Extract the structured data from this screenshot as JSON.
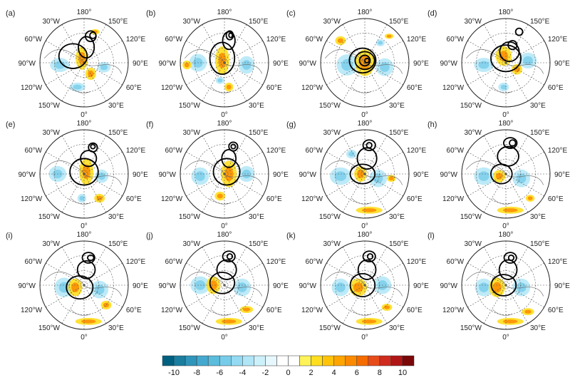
{
  "chart_data": {
    "type": "heatmap",
    "projection": "north-polar-stereographic",
    "layout": {
      "rows": 3,
      "cols": 4
    },
    "lon_labels": {
      "top": "180°",
      "bottom": "0°",
      "left": [
        "150°W",
        "120°W",
        "90°W",
        "60°W",
        "30°W"
      ],
      "right": [
        "150°E",
        "120°E",
        "90°E",
        "60°E",
        "30°E"
      ]
    },
    "panels": [
      {
        "label": "(a)",
        "cool": [
          [
            -0.55,
            0.05,
            0.22,
            0.16
          ],
          [
            -0.15,
            0.55,
            0.18,
            0.1
          ],
          [
            0.45,
            0.1,
            0.15,
            0.12
          ]
        ],
        "warm": [
          [
            -0.05,
            -0.1,
            0.14,
            0.26
          ],
          [
            0.15,
            0.25,
            0.12,
            0.14
          ],
          [
            0.25,
            -0.7,
            0.1,
            0.06
          ]
        ],
        "loops": [
          [
            -0.25,
            -0.15,
            0.32,
            0.28
          ],
          [
            0.05,
            -0.35,
            0.18,
            0.24
          ],
          [
            0.15,
            -0.6,
            0.12,
            0.12
          ],
          [
            0.2,
            -0.62,
            0.07,
            0.07
          ]
        ]
      },
      {
        "label": "(b)",
        "cool": [
          [
            -0.6,
            0.0,
            0.2,
            0.2
          ],
          [
            0.5,
            0.05,
            0.18,
            0.2
          ],
          [
            -0.1,
            0.4,
            0.1,
            0.08
          ]
        ],
        "warm": [
          [
            -0.05,
            -0.05,
            0.16,
            0.32
          ],
          [
            -0.85,
            0.05,
            0.1,
            0.1
          ],
          [
            0.1,
            0.55,
            0.1,
            0.1
          ]
        ],
        "loops": [
          [
            -0.05,
            -0.1,
            0.28,
            0.36
          ],
          [
            0.1,
            -0.5,
            0.14,
            0.2
          ],
          [
            0.12,
            -0.62,
            0.08,
            0.1
          ],
          [
            0.14,
            -0.62,
            0.04,
            0.05
          ]
        ]
      },
      {
        "label": "(c)",
        "cool": [
          [
            -0.4,
            0.05,
            0.24,
            0.24
          ],
          [
            0.45,
            0.1,
            0.2,
            0.2
          ],
          [
            0.35,
            -0.45,
            0.1,
            0.08
          ]
        ],
        "warm": [
          [
            0.0,
            0.0,
            0.22,
            0.3
          ],
          [
            -0.55,
            -0.5,
            0.12,
            0.1
          ],
          [
            0.55,
            -0.6,
            0.1,
            0.06
          ]
        ],
        "loops": [
          [
            -0.05,
            -0.05,
            0.3,
            0.28
          ],
          [
            0.0,
            -0.05,
            0.22,
            0.2
          ],
          [
            0.0,
            -0.05,
            0.12,
            0.12
          ],
          [
            0.05,
            -0.05,
            0.05,
            0.05
          ]
        ]
      },
      {
        "label": "(d)",
        "cool": [
          [
            -0.5,
            0.05,
            0.22,
            0.16
          ],
          [
            0.5,
            -0.05,
            0.2,
            0.18
          ],
          [
            -0.05,
            0.55,
            0.12,
            0.1
          ]
        ],
        "warm": [
          [
            -0.05,
            -0.15,
            0.18,
            0.22
          ],
          [
            0.25,
            0.15,
            0.12,
            0.12
          ]
        ],
        "loops": [
          [
            0.0,
            -0.1,
            0.34,
            0.3
          ],
          [
            0.08,
            -0.25,
            0.22,
            0.22
          ],
          [
            0.15,
            -0.4,
            0.1,
            0.1
          ],
          [
            0.3,
            -0.7,
            0.08,
            0.08
          ]
        ]
      },
      {
        "label": "(e)",
        "cool": [
          [
            -0.6,
            0.0,
            0.2,
            0.18
          ],
          [
            0.4,
            0.05,
            0.15,
            0.15
          ],
          [
            -0.05,
            0.55,
            0.1,
            0.1
          ]
        ],
        "warm": [
          [
            0.05,
            -0.05,
            0.16,
            0.3
          ],
          [
            0.35,
            0.55,
            0.12,
            0.1
          ]
        ],
        "loops": [
          [
            0.0,
            -0.05,
            0.32,
            0.3
          ],
          [
            0.1,
            -0.35,
            0.18,
            0.18
          ],
          [
            0.2,
            -0.6,
            0.1,
            0.1
          ],
          [
            0.2,
            -0.62,
            0.05,
            0.05
          ]
        ]
      },
      {
        "label": "(f)",
        "cool": [
          [
            -0.55,
            0.05,
            0.2,
            0.2
          ],
          [
            0.5,
            0.0,
            0.18,
            0.18
          ]
        ],
        "warm": [
          [
            0.1,
            0.0,
            0.18,
            0.3
          ],
          [
            -0.1,
            0.5,
            0.12,
            0.1
          ]
        ],
        "loops": [
          [
            0.05,
            -0.05,
            0.3,
            0.3
          ],
          [
            0.1,
            -0.35,
            0.16,
            0.2
          ],
          [
            0.2,
            -0.62,
            0.1,
            0.1
          ],
          [
            0.2,
            -0.62,
            0.05,
            0.05
          ]
        ]
      },
      {
        "label": "(g)",
        "cool": [
          [
            -0.55,
            0.05,
            0.24,
            0.2
          ],
          [
            0.3,
            0.1,
            0.2,
            0.2
          ],
          [
            -0.3,
            -0.45,
            0.12,
            0.1
          ]
        ],
        "warm": [
          [
            -0.1,
            0.0,
            0.14,
            0.18
          ],
          [
            0.6,
            0.1,
            0.1,
            0.08
          ],
          [
            0.1,
            0.82,
            0.3,
            0.08
          ]
        ],
        "loops": [
          [
            -0.05,
            0.0,
            0.28,
            0.22
          ],
          [
            0.05,
            -0.35,
            0.22,
            0.24
          ],
          [
            0.1,
            -0.65,
            0.14,
            0.12
          ],
          [
            0.1,
            -0.65,
            0.06,
            0.06
          ]
        ]
      },
      {
        "label": "(h)",
        "cool": [
          [
            -0.5,
            0.05,
            0.22,
            0.2
          ],
          [
            0.35,
            0.1,
            0.2,
            0.2
          ]
        ],
        "warm": [
          [
            -0.15,
            0.05,
            0.14,
            0.14
          ],
          [
            0.1,
            0.82,
            0.3,
            0.08
          ],
          [
            0.55,
            0.55,
            0.1,
            0.08
          ]
        ],
        "loops": [
          [
            -0.1,
            0.0,
            0.24,
            0.22
          ],
          [
            0.05,
            -0.4,
            0.24,
            0.22
          ],
          [
            0.1,
            -0.7,
            0.15,
            0.12
          ],
          [
            0.15,
            -0.7,
            0.07,
            0.07
          ]
        ]
      },
      {
        "label": "(i)",
        "cool": [
          [
            -0.45,
            0.05,
            0.22,
            0.22
          ],
          [
            0.35,
            0.1,
            0.2,
            0.2
          ]
        ],
        "warm": [
          [
            -0.2,
            0.05,
            0.16,
            0.2
          ],
          [
            0.1,
            0.82,
            0.3,
            0.08
          ],
          [
            0.5,
            0.45,
            0.12,
            0.1
          ]
        ],
        "loops": [
          [
            -0.1,
            0.05,
            0.3,
            0.26
          ],
          [
            0.05,
            -0.35,
            0.2,
            0.2
          ],
          [
            0.1,
            -0.62,
            0.14,
            0.12
          ],
          [
            0.15,
            -0.62,
            0.07,
            0.06
          ]
        ]
      },
      {
        "label": "(j)",
        "cool": [
          [
            -0.55,
            0.0,
            0.22,
            0.2
          ],
          [
            0.4,
            0.05,
            0.2,
            0.2
          ]
        ],
        "warm": [
          [
            -0.25,
            0.0,
            0.16,
            0.2
          ],
          [
            0.1,
            0.82,
            0.3,
            0.08
          ],
          [
            0.5,
            0.55,
            0.15,
            0.08
          ]
        ],
        "loops": [
          [
            -0.05,
            -0.05,
            0.28,
            0.24
          ],
          [
            0.05,
            -0.35,
            0.22,
            0.22
          ],
          [
            0.1,
            -0.65,
            0.14,
            0.12
          ],
          [
            0.12,
            -0.65,
            0.06,
            0.06
          ]
        ]
      },
      {
        "label": "(k)",
        "cool": [
          [
            -0.55,
            0.05,
            0.2,
            0.2
          ],
          [
            0.4,
            0.0,
            0.2,
            0.2
          ]
        ],
        "warm": [
          [
            -0.15,
            0.05,
            0.2,
            0.2
          ],
          [
            0.1,
            0.82,
            0.3,
            0.08
          ],
          [
            0.5,
            0.5,
            0.12,
            0.08
          ]
        ],
        "loops": [
          [
            -0.05,
            0.0,
            0.28,
            0.26
          ],
          [
            0.05,
            -0.35,
            0.2,
            0.22
          ],
          [
            0.1,
            -0.65,
            0.14,
            0.12
          ],
          [
            0.12,
            -0.65,
            0.06,
            0.06
          ]
        ]
      },
      {
        "label": "(l)",
        "cool": [
          [
            -0.5,
            0.05,
            0.2,
            0.2
          ],
          [
            0.35,
            0.05,
            0.2,
            0.2
          ]
        ],
        "warm": [
          [
            -0.2,
            0.05,
            0.18,
            0.22
          ],
          [
            0.1,
            0.82,
            0.3,
            0.08
          ],
          [
            0.5,
            0.6,
            0.14,
            0.08
          ]
        ],
        "loops": [
          [
            -0.05,
            0.0,
            0.28,
            0.24
          ],
          [
            0.05,
            -0.35,
            0.2,
            0.22
          ],
          [
            0.1,
            -0.62,
            0.14,
            0.12
          ],
          [
            0.12,
            -0.62,
            0.06,
            0.06
          ]
        ]
      }
    ],
    "colorbar": {
      "ticks": [
        "-10",
        "-8",
        "-6",
        "-4",
        "-2",
        "0",
        "2",
        "4",
        "6",
        "8",
        "10"
      ],
      "bin_edges": [
        -11,
        -10,
        -9,
        -8,
        -7,
        -6,
        -5,
        -4,
        -3,
        -2,
        -1,
        0,
        1,
        2,
        3,
        4,
        5,
        6,
        7,
        8,
        9,
        10,
        11
      ],
      "colors": [
        "#00607f",
        "#1a7ea0",
        "#2f95bb",
        "#45a9cf",
        "#5bbcdc",
        "#77ccea",
        "#93daf2",
        "#b1e6f7",
        "#ccf1fb",
        "#e6f8fd",
        "#ffffff",
        "#ffffff",
        "#fff35a",
        "#ffde1f",
        "#ffc40a",
        "#ffa500",
        "#fc8a00",
        "#f56c00",
        "#e84b1a",
        "#cf2b1e",
        "#b01616",
        "#7a0808"
      ]
    }
  }
}
